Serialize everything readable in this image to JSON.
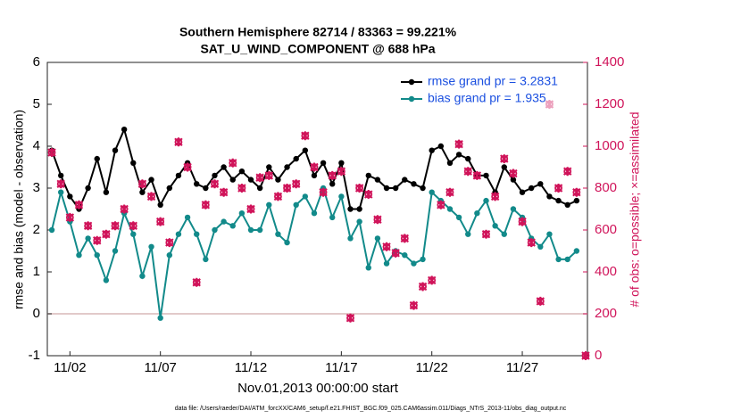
{
  "chart_data": {
    "type": "line",
    "title": "Southern Hemisphere 82714 / 83363 = 99.221%",
    "subtitle": "SAT_U_WIND_COMPONENT @ 688 hPa",
    "xlabel": "Nov.01,2013 00:00:00 start",
    "ylabel": "rmse and bias (model - observation)",
    "y2label": "# of obs: o=possible; ×=assimilated",
    "footnote": "data file: /Users/raeder/DAI/ATM_forcXX/CAM6_setup/f.e21.FHIST_BGC.f09_025.CAM6assim.011/Diags_NTrS_2013-11/obs_diag_output.nc",
    "x": [
      0,
      0.5,
      1,
      1.5,
      2,
      2.5,
      3,
      3.5,
      4,
      4.5,
      5,
      5.5,
      6,
      6.5,
      7,
      7.5,
      8,
      8.5,
      9,
      9.5,
      10,
      10.5,
      11,
      11.5,
      12,
      12.5,
      13,
      13.5,
      14,
      14.5,
      15,
      15.5,
      16,
      16.5,
      17,
      17.5,
      18,
      18.5,
      19,
      19.5,
      20,
      20.5,
      21,
      21.5,
      22,
      22.5,
      23,
      23.5,
      24,
      24.5,
      25,
      25.5,
      26,
      26.5,
      27,
      27.5,
      28,
      28.5,
      29,
      29.5
    ],
    "xlim": [
      -0.25,
      29.6
    ],
    "xticks": [
      {
        "value": 1,
        "label": "11/02"
      },
      {
        "value": 6,
        "label": "11/07"
      },
      {
        "value": 11,
        "label": "11/12"
      },
      {
        "value": 16,
        "label": "11/17"
      },
      {
        "value": 21,
        "label": "11/22"
      },
      {
        "value": 26,
        "label": "11/27"
      }
    ],
    "ylim": [
      -1,
      6
    ],
    "yticks": [
      -1,
      0,
      1,
      2,
      3,
      4,
      5,
      6
    ],
    "y2lim": [
      0,
      1400
    ],
    "y2ticks": [
      0,
      200,
      400,
      600,
      800,
      1000,
      1200,
      1400
    ],
    "y2_color": "#d0145a",
    "zero_line_color": "#d8b8b8",
    "legend": "upper right",
    "legend_text_color": "#1a4fe0",
    "series": [
      {
        "name": "rmse grand pr = 3.2831",
        "color": "#000000",
        "line": true,
        "marker": "circle",
        "values": [
          3.9,
          3.3,
          2.8,
          2.5,
          3.0,
          3.7,
          2.9,
          3.9,
          4.4,
          3.6,
          2.9,
          3.2,
          2.6,
          3.0,
          3.3,
          3.6,
          3.1,
          3.0,
          3.3,
          3.5,
          3.2,
          3.4,
          3.2,
          3.0,
          3.5,
          3.2,
          3.5,
          3.7,
          3.9,
          3.3,
          3.6,
          3.1,
          3.6,
          2.5,
          2.5,
          3.3,
          3.2,
          3.0,
          3.0,
          3.2,
          3.1,
          3.0,
          3.9,
          4.0,
          3.6,
          3.8,
          3.7,
          3.3,
          3.3,
          2.9,
          3.5,
          3.2,
          2.9,
          3.0,
          3.1,
          2.8,
          2.7,
          2.6,
          2.7,
          null
        ]
      },
      {
        "name": "bias grand pr = 1.935",
        "color": "#128a8a",
        "line": true,
        "marker": "circle",
        "values": [
          2.0,
          2.9,
          2.2,
          1.4,
          1.8,
          1.4,
          0.8,
          1.5,
          2.4,
          1.9,
          0.9,
          1.6,
          -0.1,
          1.4,
          1.9,
          2.3,
          1.9,
          1.3,
          2.0,
          2.2,
          2.1,
          2.4,
          2.0,
          2.0,
          2.6,
          1.9,
          1.7,
          2.6,
          2.8,
          2.4,
          3.0,
          2.3,
          2.8,
          1.8,
          2.2,
          1.1,
          1.8,
          1.2,
          1.5,
          1.4,
          1.2,
          1.3,
          2.9,
          2.7,
          2.5,
          2.3,
          1.9,
          2.4,
          2.7,
          2.1,
          1.9,
          2.5,
          2.3,
          1.8,
          1.6,
          1.9,
          1.3,
          1.3,
          1.5,
          null
        ]
      },
      {
        "color": "#d0145a",
        "axis": "y2",
        "marker": "o",
        "values": [
          970,
          820,
          660,
          720,
          620,
          550,
          580,
          620,
          700,
          620,
          820,
          760,
          640,
          540,
          1020,
          900,
          350,
          720,
          820,
          780,
          920,
          800,
          700,
          850,
          860,
          760,
          800,
          820,
          1050,
          900,
          780,
          860,
          880,
          180,
          800,
          770,
          650,
          520,
          490,
          560,
          240,
          330,
          360,
          720,
          780,
          1010,
          880,
          860,
          580,
          760,
          940,
          870,
          640,
          540,
          260,
          1200,
          800,
          880,
          780,
          0
        ]
      },
      {
        "color": "#d0145a",
        "axis": "y2",
        "marker": "x",
        "values": [
          970,
          820,
          660,
          720,
          620,
          550,
          580,
          620,
          700,
          620,
          820,
          760,
          640,
          540,
          1020,
          900,
          350,
          720,
          820,
          780,
          920,
          800,
          700,
          850,
          860,
          760,
          800,
          820,
          1050,
          900,
          780,
          860,
          880,
          180,
          800,
          770,
          650,
          520,
          490,
          560,
          240,
          330,
          360,
          720,
          780,
          1010,
          880,
          860,
          580,
          760,
          940,
          870,
          640,
          540,
          260,
          1200,
          800,
          880,
          780,
          0
        ]
      }
    ]
  }
}
